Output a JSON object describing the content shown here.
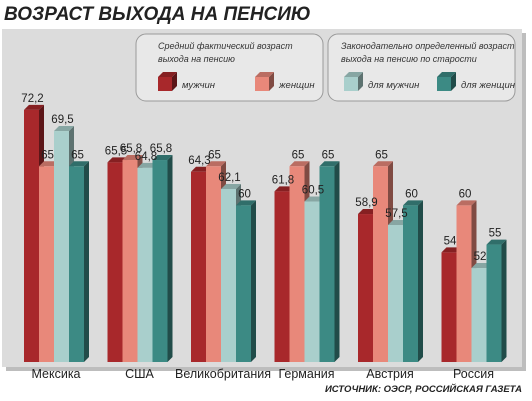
{
  "chart_data": {
    "type": "bar",
    "title": "ВОЗРАСТ ВЫХОДА НА ПЕНСИЮ",
    "categories": [
      "Мексика",
      "США",
      "Великобритания",
      "Германия",
      "Австрия",
      "Россия"
    ],
    "series": [
      {
        "name": "мужчин",
        "group": 0,
        "color": "#a8282b",
        "values": [
          72.2,
          65.5,
          64.3,
          61.8,
          58.9,
          54
        ]
      },
      {
        "name": "женщин",
        "group": 0,
        "color": "#e8887a",
        "values": [
          65,
          65.8,
          65,
          65,
          65,
          60
        ]
      },
      {
        "name": "для мужчин",
        "group": 1,
        "color": "#a9cfcc",
        "values": [
          69.5,
          64.8,
          62.1,
          60.5,
          57.5,
          52
        ]
      },
      {
        "name": "для женщин",
        "group": 1,
        "color": "#3c8a84",
        "values": [
          65,
          65.8,
          60,
          65,
          60,
          55
        ]
      }
    ],
    "labels": [
      [
        "72,2",
        "65",
        "69,5",
        "65"
      ],
      [
        "65,5",
        "65,8",
        "64,8",
        "65,8"
      ],
      [
        "64,3",
        "65",
        "62,1",
        "60"
      ],
      [
        "61,8",
        "65",
        "60,5",
        "65"
      ],
      [
        "58,9",
        "65",
        "57,5",
        "60"
      ],
      [
        "54",
        "60",
        "52",
        "55"
      ]
    ],
    "legend_groups": [
      {
        "heading": [
          "Средний фактический возраст",
          "выхода на пенсию"
        ]
      },
      {
        "heading": [
          "Законодательно определенный возраст",
          "выхода на пенсию по старости"
        ]
      }
    ],
    "ylim": [
      40,
      75
    ],
    "grid": false,
    "legend": "top",
    "source": "ИСТОЧНИК: ОЭСР, РОССИЙСКАЯ ГАЗЕТА"
  },
  "colors": {
    "panel": "#dcdcdc",
    "shadow": "#8f8f8f",
    "bar_side_dark": 0.55
  }
}
